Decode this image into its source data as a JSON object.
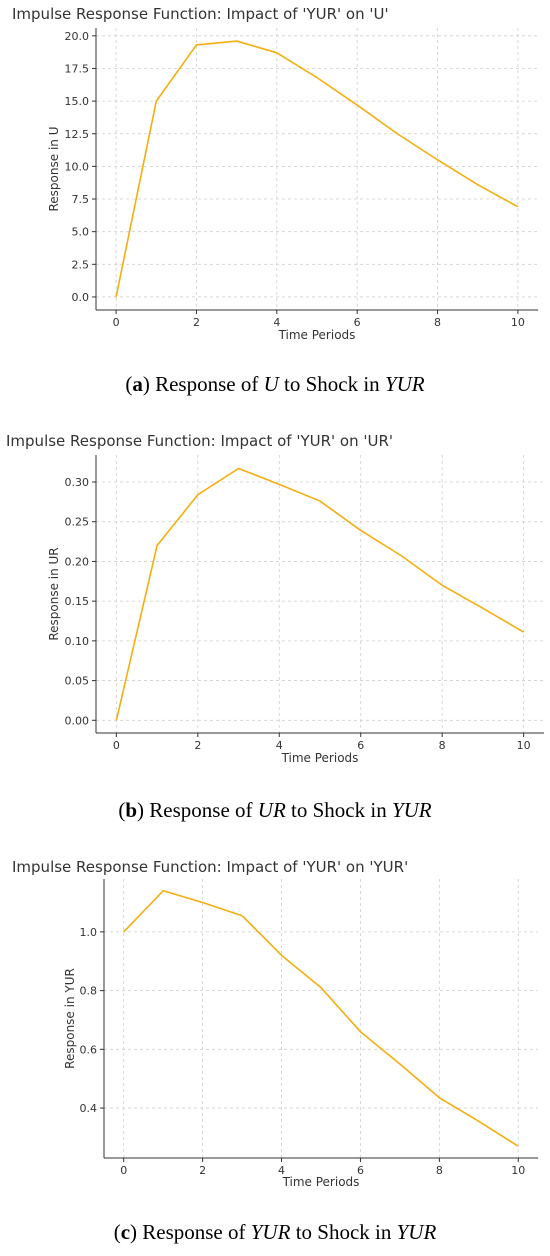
{
  "chart_data": [
    {
      "type": "line",
      "title": "Impulse Response Function: Impact of 'YUR' on 'U'",
      "xlabel": "Time Periods",
      "ylabel": "Response in U",
      "x": [
        0,
        1,
        2,
        3,
        4,
        5,
        6,
        7,
        8,
        9,
        10
      ],
      "series": [
        {
          "values": [
            0.0,
            15.0,
            19.3,
            19.6,
            18.7,
            16.8,
            14.7,
            12.5,
            10.5,
            8.6,
            6.9
          ]
        }
      ],
      "xlim": [
        -0.5,
        10.5
      ],
      "ylim": [
        -1.0,
        20.6
      ],
      "xticks": [
        "0",
        "2",
        "4",
        "6",
        "8",
        "10"
      ],
      "yticks": [
        "0.0",
        "2.5",
        "5.0",
        "7.5",
        "10.0",
        "12.5",
        "15.0",
        "17.5",
        "20.0"
      ],
      "grid": true,
      "color": "#f6ae0f"
    },
    {
      "type": "line",
      "title": "Impulse Response Function: Impact of 'YUR' on 'UR'",
      "xlabel": "Time Periods",
      "ylabel": "Response in UR",
      "x": [
        0,
        1,
        2,
        3,
        4,
        5,
        6,
        7,
        8,
        9,
        10
      ],
      "series": [
        {
          "values": [
            0.0,
            0.22,
            0.284,
            0.317,
            0.297,
            0.276,
            0.239,
            0.207,
            0.17,
            0.141,
            0.111
          ]
        }
      ],
      "xlim": [
        -0.5,
        10.5
      ],
      "ylim": [
        -0.016,
        0.334
      ],
      "xticks": [
        "0",
        "2",
        "4",
        "6",
        "8",
        "10"
      ],
      "yticks": [
        "0.00",
        "0.05",
        "0.10",
        "0.15",
        "0.20",
        "0.25",
        "0.30"
      ],
      "grid": true,
      "color": "#f6ae0f"
    },
    {
      "type": "line",
      "title": "Impulse Response Function: Impact of 'YUR' on 'YUR'",
      "xlabel": "Time Periods",
      "ylabel": "Response in YUR",
      "x": [
        0,
        1,
        2,
        3,
        4,
        5,
        6,
        7,
        8,
        9,
        10
      ],
      "series": [
        {
          "values": [
            1.0,
            1.14,
            1.1,
            1.055,
            0.92,
            0.81,
            0.66,
            0.55,
            0.435,
            0.355,
            0.27
          ]
        }
      ],
      "xlim": [
        -0.5,
        10.5
      ],
      "ylim": [
        0.23,
        1.18
      ],
      "xticks": [
        "0",
        "2",
        "4",
        "6",
        "8",
        "10"
      ],
      "yticks": [
        "0.4",
        "0.6",
        "0.8",
        "1.0"
      ],
      "grid": true,
      "color": "#f6ae0f"
    }
  ],
  "captions": [
    {
      "letter": "a",
      "pre": ") Response of ",
      "var1": "U",
      "mid": " to Shock in ",
      "var2": "YUR"
    },
    {
      "letter": "b",
      "pre": ") Response of ",
      "var1": "UR",
      "mid": " to Shock in ",
      "var2": "YUR"
    },
    {
      "letter": "c",
      "pre": ") Response of ",
      "var1": "YUR",
      "mid": " to Shock in ",
      "var2": "YUR"
    }
  ]
}
